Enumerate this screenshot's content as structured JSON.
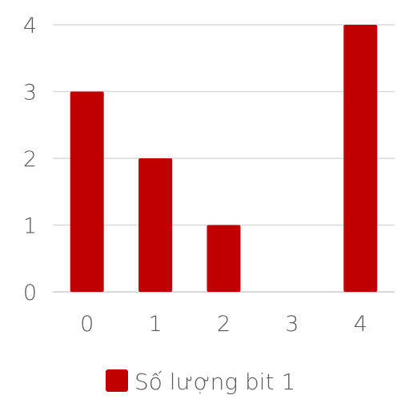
{
  "chart_data": {
    "type": "bar",
    "title": "",
    "xlabel": "",
    "ylabel": "",
    "categories": [
      "0",
      "1",
      "2",
      "3",
      "4"
    ],
    "series": [
      {
        "name": "Số lượng bit 1",
        "values": [
          3,
          2,
          1,
          0,
          4
        ],
        "color": "#c00000"
      }
    ],
    "ylim": [
      0,
      4
    ],
    "yticks": [
      "0",
      "1",
      "2",
      "3",
      "4"
    ],
    "grid": true,
    "legend_position": "bottom"
  }
}
